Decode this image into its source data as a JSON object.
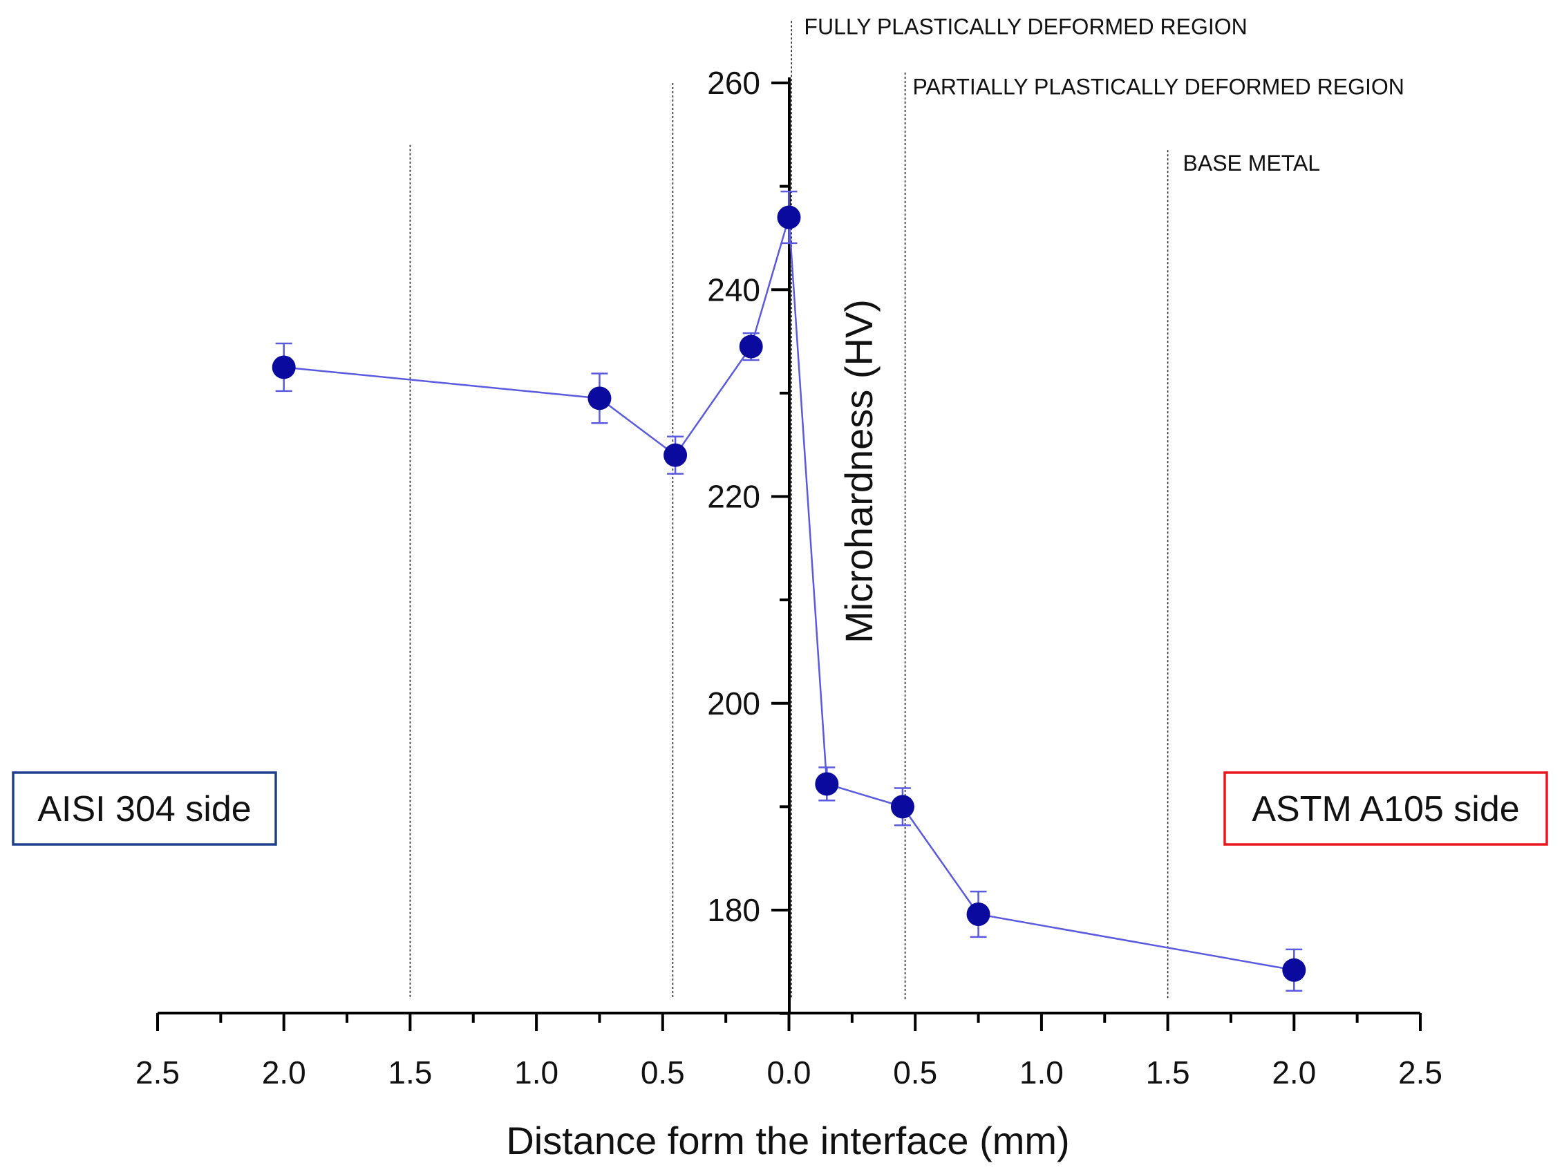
{
  "chart_data": {
    "type": "line",
    "title": "",
    "xlabel": "Distance form the interface (mm)",
    "ylabel": "Microhardness (HV)",
    "x_tick_labels": [
      "2.5",
      "2.0",
      "1.5",
      "1.0",
      "0.5",
      "0.0",
      "0.5",
      "1.0",
      "1.5",
      "2.0",
      "2.5"
    ],
    "x_tick_values": [
      -2.5,
      -2.0,
      -1.5,
      -1.0,
      -0.5,
      0.0,
      0.5,
      1.0,
      1.5,
      2.0,
      2.5
    ],
    "xlim": [
      -2.5,
      2.5
    ],
    "y_tick_labels": [
      "180",
      "200",
      "220",
      "240",
      "260"
    ],
    "y_tick_values": [
      180,
      200,
      220,
      240,
      260
    ],
    "ylim": [
      170,
      260
    ],
    "series": [
      {
        "name": "Microhardness",
        "color": "#0a0a9e",
        "line_color": "#5a5ae0",
        "x": [
          -2.0,
          -0.75,
          -0.45,
          -0.15,
          0.0,
          0.15,
          0.45,
          0.75,
          2.0
        ],
        "y": [
          232.5,
          229.5,
          224.0,
          234.5,
          247.0,
          192.2,
          190.0,
          179.6,
          174.2
        ],
        "error": [
          2.3,
          2.4,
          1.8,
          1.3,
          2.5,
          1.6,
          1.8,
          2.2,
          2.0
        ]
      }
    ],
    "reference_lines": [
      {
        "x": -1.5,
        "y_top": 254
      },
      {
        "x": -0.46,
        "y_top": 260
      },
      {
        "x": 0.01,
        "y_top": 266
      },
      {
        "x": 0.46,
        "y_top": 261
      },
      {
        "x": 1.5,
        "y_top": 253.5
      }
    ],
    "region_labels": [
      {
        "text": "FULLY PLASTICALLY DEFORMED REGION",
        "x": 0.06,
        "y": 265.5
      },
      {
        "text": "PARTIALLY PLASTICALLY DEFORMED REGION",
        "x": 0.49,
        "y": 259.7
      },
      {
        "text": "BASE METAL",
        "x": 1.56,
        "y": 252.3
      }
    ],
    "side_labels": [
      {
        "text": "AISI 304 side",
        "border_color": "#1f3f8f"
      },
      {
        "text": "ASTM A105 side",
        "border_color": "#e8161d"
      }
    ],
    "grid": false
  }
}
